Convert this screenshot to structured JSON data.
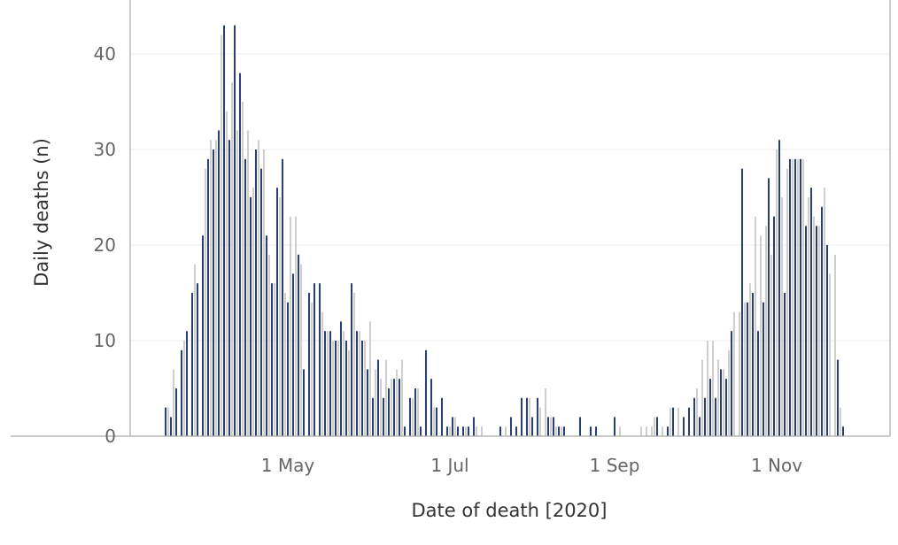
{
  "chart_data": {
    "type": "bar",
    "title": "",
    "xlabel": "Date of death [2020]",
    "ylabel": "Daily deaths (n)",
    "ylim": [
      0,
      45
    ],
    "y_ticks": [
      0,
      10,
      20,
      30,
      40
    ],
    "x_ticks": [
      {
        "date": "2020-05-01",
        "label": "1 May"
      },
      {
        "date": "2020-07-01",
        "label": "1 Jul"
      },
      {
        "date": "2020-09-01",
        "label": "1 Sep"
      },
      {
        "date": "2020-11-01",
        "label": "1 Nov"
      }
    ],
    "x_range": [
      "2020-03-01",
      "2020-12-31"
    ],
    "grid": true,
    "bar_colors": {
      "primary": "#2b3f73",
      "secondary": "#cfcfcf"
    },
    "series": [
      {
        "style": "primary",
        "points": [
          [
            "2020-03-16",
            3
          ],
          [
            "2020-03-18",
            2
          ],
          [
            "2020-03-20",
            5
          ],
          [
            "2020-03-22",
            9
          ],
          [
            "2020-03-24",
            11
          ],
          [
            "2020-03-26",
            15
          ],
          [
            "2020-03-28",
            16
          ],
          [
            "2020-03-30",
            21
          ],
          [
            "2020-04-01",
            29
          ],
          [
            "2020-04-03",
            30
          ],
          [
            "2020-04-05",
            32
          ],
          [
            "2020-04-07",
            43
          ],
          [
            "2020-04-09",
            31
          ],
          [
            "2020-04-11",
            43
          ],
          [
            "2020-04-13",
            38
          ],
          [
            "2020-04-15",
            29
          ],
          [
            "2020-04-17",
            25
          ],
          [
            "2020-04-19",
            30
          ],
          [
            "2020-04-21",
            28
          ],
          [
            "2020-04-23",
            21
          ],
          [
            "2020-04-25",
            16
          ],
          [
            "2020-04-27",
            26
          ],
          [
            "2020-04-29",
            29
          ],
          [
            "2020-05-01",
            14
          ],
          [
            "2020-05-03",
            17
          ],
          [
            "2020-05-05",
            19
          ],
          [
            "2020-05-07",
            7
          ],
          [
            "2020-05-09",
            15
          ],
          [
            "2020-05-11",
            16
          ],
          [
            "2020-05-13",
            16
          ],
          [
            "2020-05-15",
            11
          ],
          [
            "2020-05-17",
            11
          ],
          [
            "2020-05-19",
            10
          ],
          [
            "2020-05-21",
            12
          ],
          [
            "2020-05-23",
            10
          ],
          [
            "2020-05-25",
            16
          ],
          [
            "2020-05-27",
            11
          ],
          [
            "2020-05-29",
            10
          ],
          [
            "2020-05-31",
            7
          ],
          [
            "2020-06-02",
            4
          ],
          [
            "2020-06-04",
            8
          ],
          [
            "2020-06-06",
            4
          ],
          [
            "2020-06-08",
            5
          ],
          [
            "2020-06-10",
            6
          ],
          [
            "2020-06-12",
            6
          ],
          [
            "2020-06-14",
            1
          ],
          [
            "2020-06-16",
            4
          ],
          [
            "2020-06-18",
            5
          ],
          [
            "2020-06-20",
            1
          ],
          [
            "2020-06-22",
            9
          ],
          [
            "2020-06-24",
            6
          ],
          [
            "2020-06-26",
            3
          ],
          [
            "2020-06-28",
            4
          ],
          [
            "2020-06-30",
            1
          ],
          [
            "2020-07-02",
            2
          ],
          [
            "2020-07-04",
            1
          ],
          [
            "2020-07-06",
            1
          ],
          [
            "2020-07-08",
            1
          ],
          [
            "2020-07-10",
            2
          ],
          [
            "2020-07-20",
            1
          ],
          [
            "2020-07-24",
            2
          ],
          [
            "2020-07-26",
            1
          ],
          [
            "2020-07-28",
            4
          ],
          [
            "2020-07-30",
            4
          ],
          [
            "2020-08-01",
            2
          ],
          [
            "2020-08-03",
            4
          ],
          [
            "2020-08-07",
            2
          ],
          [
            "2020-08-09",
            2
          ],
          [
            "2020-08-11",
            1
          ],
          [
            "2020-08-13",
            1
          ],
          [
            "2020-08-19",
            2
          ],
          [
            "2020-08-23",
            1
          ],
          [
            "2020-08-25",
            1
          ],
          [
            "2020-09-01",
            2
          ],
          [
            "2020-09-17",
            2
          ],
          [
            "2020-09-21",
            1
          ],
          [
            "2020-09-23",
            3
          ],
          [
            "2020-09-27",
            2
          ],
          [
            "2020-09-29",
            3
          ],
          [
            "2020-10-01",
            4
          ],
          [
            "2020-10-03",
            2
          ],
          [
            "2020-10-05",
            4
          ],
          [
            "2020-10-07",
            6
          ],
          [
            "2020-10-09",
            4
          ],
          [
            "2020-10-11",
            7
          ],
          [
            "2020-10-13",
            6
          ],
          [
            "2020-10-15",
            11
          ],
          [
            "2020-10-19",
            28
          ],
          [
            "2020-10-21",
            14
          ],
          [
            "2020-10-23",
            15
          ],
          [
            "2020-10-25",
            11
          ],
          [
            "2020-10-27",
            14
          ],
          [
            "2020-10-29",
            27
          ],
          [
            "2020-10-31",
            23
          ],
          [
            "2020-11-02",
            31
          ],
          [
            "2020-11-04",
            15
          ],
          [
            "2020-11-06",
            29
          ],
          [
            "2020-11-08",
            29
          ],
          [
            "2020-11-10",
            29
          ],
          [
            "2020-11-12",
            22
          ],
          [
            "2020-11-14",
            26
          ],
          [
            "2020-11-16",
            22
          ],
          [
            "2020-11-18",
            24
          ],
          [
            "2020-11-20",
            20
          ],
          [
            "2020-11-24",
            8
          ],
          [
            "2020-11-26",
            1
          ]
        ]
      },
      {
        "style": "secondary",
        "points": [
          [
            "2020-03-17",
            3
          ],
          [
            "2020-03-19",
            7
          ],
          [
            "2020-03-23",
            10
          ],
          [
            "2020-03-27",
            18
          ],
          [
            "2020-03-31",
            28
          ],
          [
            "2020-04-02",
            31
          ],
          [
            "2020-04-04",
            31
          ],
          [
            "2020-04-06",
            42
          ],
          [
            "2020-04-08",
            34
          ],
          [
            "2020-04-10",
            37
          ],
          [
            "2020-04-12",
            32
          ],
          [
            "2020-04-14",
            35
          ],
          [
            "2020-04-16",
            32
          ],
          [
            "2020-04-18",
            26
          ],
          [
            "2020-04-20",
            31
          ],
          [
            "2020-04-22",
            30
          ],
          [
            "2020-04-24",
            19
          ],
          [
            "2020-04-26",
            16
          ],
          [
            "2020-04-28",
            25
          ],
          [
            "2020-04-30",
            15
          ],
          [
            "2020-05-02",
            23
          ],
          [
            "2020-05-04",
            23
          ],
          [
            "2020-05-06",
            18
          ],
          [
            "2020-05-10",
            14
          ],
          [
            "2020-05-14",
            13
          ],
          [
            "2020-05-16",
            11
          ],
          [
            "2020-05-18",
            10
          ],
          [
            "2020-05-20",
            10
          ],
          [
            "2020-05-22",
            11
          ],
          [
            "2020-05-24",
            9
          ],
          [
            "2020-05-26",
            15
          ],
          [
            "2020-05-28",
            11
          ],
          [
            "2020-05-30",
            10
          ],
          [
            "2020-06-01",
            12
          ],
          [
            "2020-06-03",
            7
          ],
          [
            "2020-06-05",
            6
          ],
          [
            "2020-06-07",
            8
          ],
          [
            "2020-06-09",
            6
          ],
          [
            "2020-06-11",
            7
          ],
          [
            "2020-06-13",
            8
          ],
          [
            "2020-06-17",
            4
          ],
          [
            "2020-06-19",
            5
          ],
          [
            "2020-06-25",
            3
          ],
          [
            "2020-07-01",
            1
          ],
          [
            "2020-07-03",
            2
          ],
          [
            "2020-07-07",
            1
          ],
          [
            "2020-07-11",
            1
          ],
          [
            "2020-07-13",
            1
          ],
          [
            "2020-07-22",
            1
          ],
          [
            "2020-07-31",
            4
          ],
          [
            "2020-08-04",
            3
          ],
          [
            "2020-08-06",
            5
          ],
          [
            "2020-08-08",
            2
          ],
          [
            "2020-08-10",
            1
          ],
          [
            "2020-08-12",
            1
          ],
          [
            "2020-09-03",
            1
          ],
          [
            "2020-09-11",
            1
          ],
          [
            "2020-09-13",
            1
          ],
          [
            "2020-09-15",
            1
          ],
          [
            "2020-09-16",
            2
          ],
          [
            "2020-09-19",
            1
          ],
          [
            "2020-09-22",
            3
          ],
          [
            "2020-09-25",
            3
          ],
          [
            "2020-10-02",
            5
          ],
          [
            "2020-10-04",
            8
          ],
          [
            "2020-10-06",
            10
          ],
          [
            "2020-10-08",
            10
          ],
          [
            "2020-10-10",
            8
          ],
          [
            "2020-10-12",
            7
          ],
          [
            "2020-10-14",
            9
          ],
          [
            "2020-10-16",
            13
          ],
          [
            "2020-10-18",
            13
          ],
          [
            "2020-10-20",
            14
          ],
          [
            "2020-10-22",
            16
          ],
          [
            "2020-10-24",
            23
          ],
          [
            "2020-10-26",
            21
          ],
          [
            "2020-10-28",
            22
          ],
          [
            "2020-10-30",
            19
          ],
          [
            "2020-11-01",
            30
          ],
          [
            "2020-11-03",
            25
          ],
          [
            "2020-11-05",
            28
          ],
          [
            "2020-11-07",
            29
          ],
          [
            "2020-11-09",
            29
          ],
          [
            "2020-11-11",
            29
          ],
          [
            "2020-11-13",
            25
          ],
          [
            "2020-11-15",
            23
          ],
          [
            "2020-11-17",
            22
          ],
          [
            "2020-11-19",
            26
          ],
          [
            "2020-11-21",
            17
          ],
          [
            "2020-11-23",
            19
          ],
          [
            "2020-11-25",
            3
          ]
        ]
      }
    ]
  }
}
